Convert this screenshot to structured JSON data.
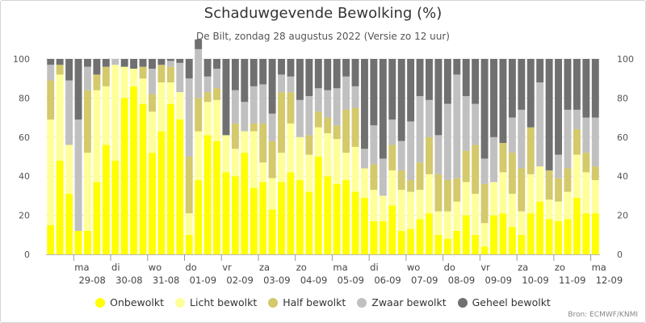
{
  "chart_data": {
    "type": "bar",
    "stacked": true,
    "title": "Schaduwgevende Bewolking (%)",
    "subtitle": "De Bilt, zondag 28 augustus 2022 (Versie zo 12 uur)",
    "source": "Bron: ECMWF/KNMI",
    "ylim": [
      0,
      100
    ],
    "yticks": [
      0,
      20,
      40,
      60,
      80,
      100
    ],
    "grid": true,
    "legend_position": "bottom",
    "day_labels": [
      {
        "dow": "ma",
        "date": "29-08"
      },
      {
        "dow": "di",
        "date": "30-08"
      },
      {
        "dow": "wo",
        "date": "31-08"
      },
      {
        "dow": "do",
        "date": "01-09"
      },
      {
        "dow": "vr",
        "date": "02-09"
      },
      {
        "dow": "za",
        "date": "03-09"
      },
      {
        "dow": "zo",
        "date": "04-09"
      },
      {
        "dow": "ma",
        "date": "05-09"
      },
      {
        "dow": "di",
        "date": "06-09"
      },
      {
        "dow": "wo",
        "date": "07-09"
      },
      {
        "dow": "do",
        "date": "08-09"
      },
      {
        "dow": "vr",
        "date": "09-09"
      },
      {
        "dow": "za",
        "date": "10-09"
      },
      {
        "dow": "zo",
        "date": "11-09"
      },
      {
        "dow": "ma",
        "date": "12-09"
      }
    ],
    "series": [
      {
        "name": "Onbewolkt",
        "color": "#ffff00",
        "values": [
          15,
          48,
          31,
          12,
          12,
          37,
          56,
          48,
          80,
          86,
          77,
          52,
          63,
          77,
          69,
          10,
          38,
          61,
          58,
          42,
          40,
          52,
          34,
          37,
          23,
          37,
          42,
          38,
          32,
          50,
          40,
          36,
          38,
          32,
          29,
          17,
          17,
          25,
          12,
          13,
          18,
          21,
          10,
          8,
          12,
          20,
          10,
          4,
          20,
          21,
          14,
          10,
          21,
          27,
          18,
          17,
          18,
          29,
          21,
          21
        ]
      },
      {
        "name": "Licht bewolkt",
        "color": "#ffff99",
        "values": [
          54,
          44,
          25,
          0,
          40,
          47,
          30,
          49,
          16,
          9,
          13,
          21,
          25,
          11,
          14,
          11,
          25,
          17,
          21,
          19,
          14,
          11,
          29,
          10,
          16,
          15,
          25,
          22,
          19,
          15,
          22,
          23,
          14,
          23,
          15,
          16,
          13,
          18,
          21,
          19,
          15,
          20,
          12,
          14,
          15,
          17,
          21,
          12,
          17,
          21,
          17,
          12,
          20,
          18,
          10,
          10,
          14,
          22,
          21,
          17
        ]
      },
      {
        "name": "Half bewolkt",
        "color": "#d4c96b",
        "values": [
          20,
          5,
          0,
          0,
          32,
          8,
          10,
          0,
          0,
          0,
          6,
          9,
          9,
          8,
          0,
          29,
          17,
          5,
          6,
          0,
          13,
          0,
          4,
          20,
          19,
          31,
          16,
          0,
          10,
          8,
          8,
          7,
          22,
          20,
          0,
          13,
          0,
          13,
          10,
          6,
          14,
          19,
          19,
          16,
          12,
          16,
          25,
          20,
          0,
          15,
          21,
          22,
          24,
          0,
          15,
          12,
          12,
          13,
          10,
          7
        ]
      },
      {
        "name": "Zwaar bewolkt",
        "color": "#c0c0c0",
        "values": [
          8,
          0,
          33,
          57,
          12,
          0,
          0,
          3,
          0,
          0,
          0,
          13,
          0,
          3,
          15,
          40,
          25,
          8,
          10,
          0,
          17,
          15,
          19,
          20,
          14,
          9,
          8,
          19,
          20,
          12,
          14,
          19,
          17,
          11,
          10,
          20,
          19,
          13,
          15,
          30,
          34,
          19,
          20,
          39,
          53,
          28,
          21,
          13,
          23,
          0,
          18,
          30,
          0,
          43,
          0,
          12,
          30,
          10,
          18,
          25
        ]
      },
      {
        "name": "Geheel bewolkt",
        "color": "#707070",
        "values": [
          3,
          3,
          11,
          31,
          4,
          8,
          4,
          0,
          4,
          5,
          4,
          5,
          3,
          1,
          2,
          10,
          5,
          9,
          5,
          39,
          16,
          22,
          14,
          13,
          28,
          8,
          9,
          21,
          19,
          15,
          16,
          15,
          9,
          14,
          46,
          34,
          51,
          31,
          42,
          32,
          19,
          21,
          39,
          23,
          8,
          19,
          23,
          51,
          40,
          43,
          30,
          26,
          35,
          12,
          57,
          49,
          26,
          26,
          30,
          30
        ]
      }
    ]
  }
}
